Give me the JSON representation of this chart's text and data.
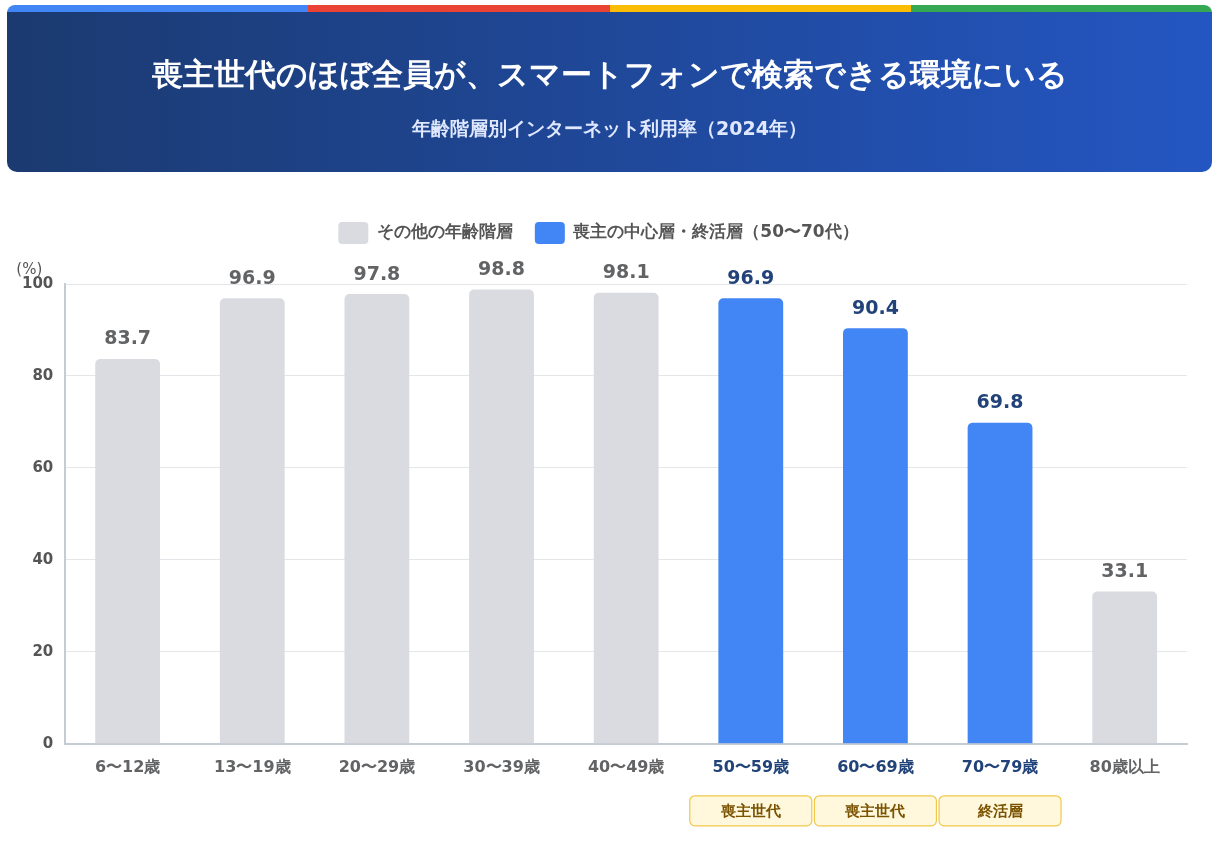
{
  "chart_data": {
    "type": "bar",
    "title": "喪主世代のほぼ全員が、スマートフォンで検索できる環境にいる",
    "subtitle": "年齢階層別インターネット利用率（2024年）",
    "ylabel": "(%)",
    "categories": [
      "6〜12歳",
      "13〜19歳",
      "20〜29歳",
      "30〜39歳",
      "40〜49歳",
      "50〜59歳",
      "60〜69歳",
      "70〜79歳",
      "80歳以上"
    ],
    "series": [
      {
        "name": "その他の年齢階層",
        "color": "#d9dbe0",
        "values": [
          83.7,
          96.9,
          97.8,
          98.8,
          98.1,
          null,
          null,
          null,
          33.1
        ]
      },
      {
        "name": "喪主の中心層・終活層（50〜70代）",
        "color": "#4285f4",
        "values": [
          null,
          null,
          null,
          null,
          null,
          96.9,
          90.4,
          69.8,
          null
        ]
      }
    ],
    "ylim": [
      0,
      100
    ],
    "yticks": [
      0,
      20,
      40,
      60,
      80,
      100
    ],
    "grid": "y",
    "legend": "top",
    "data_labels": true,
    "annotations": [
      "喪主世代",
      "喪主世代",
      "終活層"
    ]
  }
}
